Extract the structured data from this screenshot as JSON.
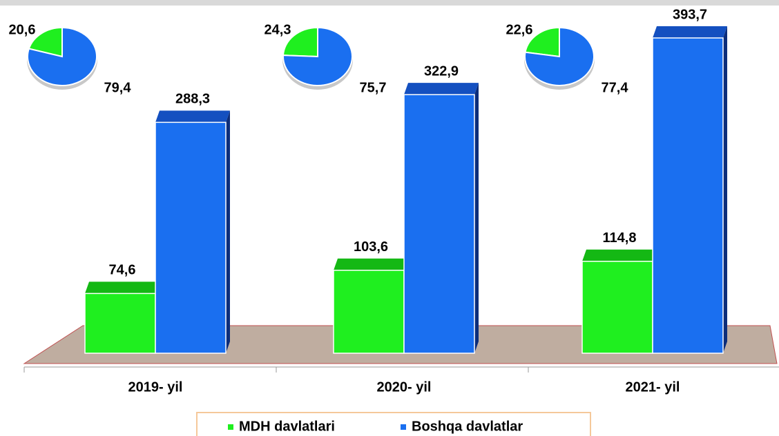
{
  "chart_data": [
    {
      "type": "bar",
      "categories": [
        "2019- yil",
        "2020- yil",
        "2021- yil"
      ],
      "series": [
        {
          "name": "MDH davlatlari",
          "color": "#1fef1f",
          "values": [
            74.6,
            103.6,
            114.8
          ],
          "value_labels": [
            "74,6",
            "103,6",
            "114,8"
          ]
        },
        {
          "name": "Boshqa davlatlar",
          "color": "#1a6ff0",
          "values": [
            288.3,
            322.9,
            393.7
          ],
          "value_labels": [
            "288,3",
            "322,9",
            "393,7"
          ]
        }
      ]
    },
    {
      "type": "pie",
      "colors": [
        "#1fef1f",
        "#1a6ff0"
      ],
      "values": [
        20.6,
        79.4
      ],
      "value_labels": [
        "20,6",
        "79,4"
      ]
    },
    {
      "type": "pie",
      "colors": [
        "#1fef1f",
        "#1a6ff0"
      ],
      "values": [
        24.3,
        75.7
      ],
      "value_labels": [
        "24,3",
        "75,7"
      ]
    },
    {
      "type": "pie",
      "colors": [
        "#1fef1f",
        "#1a6ff0"
      ],
      "values": [
        22.6,
        77.4
      ],
      "value_labels": [
        "22,6",
        "77,4"
      ]
    }
  ]
}
